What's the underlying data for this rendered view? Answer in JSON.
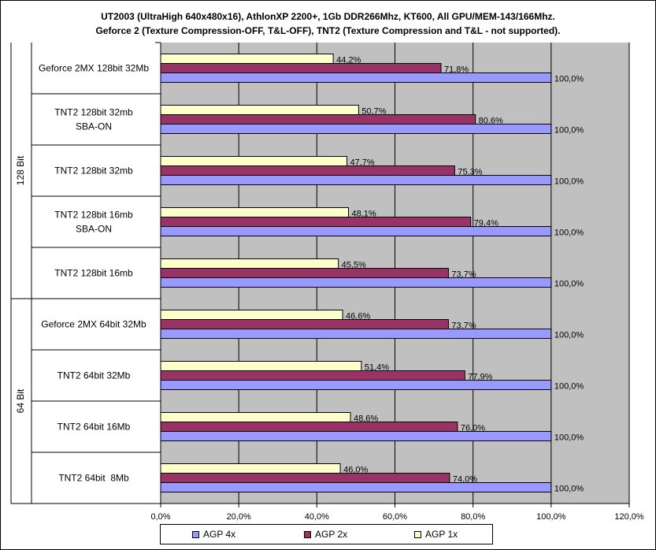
{
  "chart_data": {
    "type": "bar",
    "orientation": "horizontal",
    "title_line1": "UT2003 (UltraHigh 640x480x16), AthlonXP 2200+, 1Gb DDR266Mhz, KT600, All GPU/MEM-143/166Mhz.",
    "title_line2": "Geforce 2 (Texture Compression-OFF, T&L-OFF), TNT2 (Texture Compression and T&L - not supported).",
    "groups": [
      {
        "label": "128 Bit",
        "categories": [
          [
            "Geforce 2MX 128bit 32Mb"
          ],
          [
            "TNT2 128bit 32mb",
            "SBA-ON"
          ],
          [
            "TNT2 128bit 32mb"
          ],
          [
            "TNT2 128bit 16mb",
            "SBA-ON"
          ],
          [
            "TNT2 128bit 16mb"
          ]
        ]
      },
      {
        "label": "64 Bit",
        "categories": [
          [
            "Geforce 2MX 64bit 32Mb"
          ],
          [
            "TNT2 64bit 32Mb"
          ],
          [
            "TNT2 64bit 16Mb"
          ],
          [
            "TNT2 64bit  8Mb"
          ]
        ]
      }
    ],
    "series": [
      {
        "name": "AGP 1x",
        "color": "#ffffcc",
        "values": [
          44.2,
          50.7,
          47.7,
          48.1,
          45.5,
          46.6,
          51.4,
          48.6,
          46.0
        ],
        "labels": [
          "44,2%",
          "50,7%",
          "47,7%",
          "48,1%",
          "45,5%",
          "46,6%",
          "51,4%",
          "48,6%",
          "46,0%"
        ]
      },
      {
        "name": "AGP 2x",
        "color": "#993366",
        "values": [
          71.8,
          80.6,
          75.3,
          79.4,
          73.7,
          73.7,
          77.9,
          76.0,
          74.0
        ],
        "labels": [
          "71,8%",
          "80,6%",
          "75,3%",
          "79,4%",
          "73,7%",
          "73,7%",
          "77,9%",
          "76,0%",
          "74,0%"
        ]
      },
      {
        "name": "AGP 4x",
        "color": "#9999ff",
        "values": [
          100.0,
          100.0,
          100.0,
          100.0,
          100.0,
          100.0,
          100.0,
          100.0,
          100.0
        ],
        "labels": [
          "100,0%",
          "100,0%",
          "100,0%",
          "100,0%",
          "100,0%",
          "100,0%",
          "100,0%",
          "100,0%",
          "100,0%"
        ]
      }
    ],
    "xlim": [
      0,
      120
    ],
    "xticks": [
      0,
      20,
      40,
      60,
      80,
      100,
      120
    ],
    "xtick_labels": [
      "0,0%",
      "20,0%",
      "40,0%",
      "60,0%",
      "80,0%",
      "100,0%",
      "120,0%"
    ],
    "grid": "vertical",
    "plot_background": "#c0c0c0",
    "legend": {
      "position": "bottom",
      "items": [
        {
          "name": "AGP 4x",
          "color": "#9999ff"
        },
        {
          "name": "AGP 2x",
          "color": "#993366"
        },
        {
          "name": "AGP 1x",
          "color": "#ffffcc"
        }
      ]
    }
  }
}
